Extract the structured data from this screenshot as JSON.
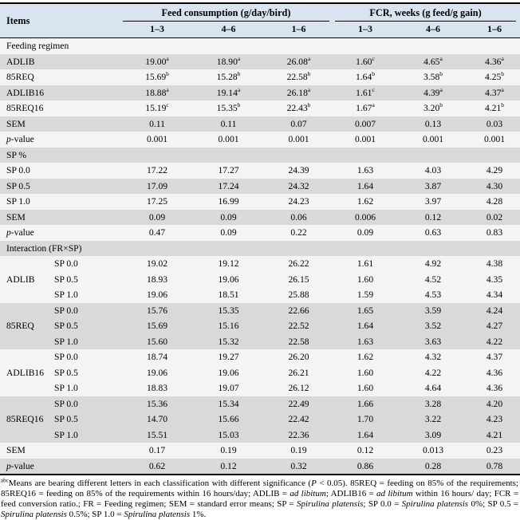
{
  "colors": {
    "header_bg": "#d9e4f1",
    "row_shaded": "#d9d9d9",
    "row_light": "#f4f4f4",
    "border": "#000000"
  },
  "table": {
    "items_header": "Items",
    "col_groups": [
      {
        "label": "Feed consumption (g/day/bird)",
        "cols": [
          "1–3",
          "4–6",
          "1–6"
        ]
      },
      {
        "label": "FCR, weeks (g feed/g gain)",
        "cols": [
          "1–3",
          "4–6",
          "1–6"
        ]
      }
    ],
    "rows": [
      {
        "type": "section",
        "label": "Feeding regimen",
        "shaded": false
      },
      {
        "type": "data",
        "label": "ADLIB",
        "shaded": true,
        "cells": [
          "19.00^a^",
          "18.90^a^",
          "26.08^a^",
          "1.60^c^",
          "4.65^a^",
          "4.36^a^"
        ]
      },
      {
        "type": "data",
        "label": "85REQ",
        "shaded": false,
        "cells": [
          "15.69^b^",
          "15.28^b^",
          "22.58^b^",
          "1.64^b^",
          "3.58^b^",
          "4.25^b^"
        ]
      },
      {
        "type": "data",
        "label": "ADLIB16",
        "shaded": true,
        "cells": [
          "18.88^a^",
          "19.14^a^",
          "26.18^a^",
          "1.61^c^",
          "4.39^a^",
          "4.37^a^"
        ]
      },
      {
        "type": "data",
        "label": "85REQ16",
        "shaded": false,
        "cells": [
          "15.19^c^",
          "15.35^b^",
          "22.43^b^",
          "1.67^a^",
          "3.20^b^",
          "4.21^b^"
        ]
      },
      {
        "type": "data",
        "label": "SEM",
        "shaded": true,
        "cells": [
          "0.11",
          "0.11",
          "0.07",
          "0.007",
          "0.13",
          "0.03"
        ]
      },
      {
        "type": "data",
        "label": "*p*-value",
        "shaded": false,
        "cells": [
          "0.001",
          "0.001",
          "0.001",
          "0.001",
          "0.001",
          "0.001"
        ]
      },
      {
        "type": "section",
        "label": "SP %",
        "shaded": true
      },
      {
        "type": "data",
        "label": "SP 0.0",
        "shaded": false,
        "cells": [
          "17.22",
          "17.27",
          "24.39",
          "1.63",
          "4.03",
          "4.29"
        ]
      },
      {
        "type": "data",
        "label": "SP 0.5",
        "shaded": true,
        "cells": [
          "17.09",
          "17.24",
          "24.32",
          "1.64",
          "3.87",
          "4.30"
        ]
      },
      {
        "type": "data",
        "label": "SP 1.0",
        "shaded": false,
        "cells": [
          "17.25",
          "16.99",
          "24.23",
          "1.62",
          "3.97",
          "4.28"
        ]
      },
      {
        "type": "data",
        "label": "SEM",
        "shaded": true,
        "cells": [
          "0.09",
          "0.09",
          "0.06",
          "0.006",
          "0.12",
          "0.02"
        ]
      },
      {
        "type": "data",
        "label": "*p*-value",
        "shaded": false,
        "cells": [
          "0.47",
          "0.09",
          "0.22",
          "0.09",
          "0.63",
          "0.83"
        ]
      },
      {
        "type": "section",
        "label": "Interaction (FR×SP)",
        "shaded": true
      },
      {
        "type": "data",
        "group": "",
        "label": "SP 0.0",
        "shaded": false,
        "cells": [
          "19.02",
          "19.12",
          "26.22",
          "1.61",
          "4.92",
          "4.38"
        ]
      },
      {
        "type": "data",
        "group": "ADLIB",
        "label": "SP 0.5",
        "shaded": false,
        "cells": [
          "18.93",
          "19.06",
          "26.15",
          "1.60",
          "4.52",
          "4.35"
        ]
      },
      {
        "type": "data",
        "group": "",
        "label": "SP 1.0",
        "shaded": false,
        "cells": [
          "19.06",
          "18.51",
          "25.88",
          "1.59",
          "4.53",
          "4.34"
        ]
      },
      {
        "type": "data",
        "group": "",
        "label": "SP 0.0",
        "shaded": true,
        "cells": [
          "15.76",
          "15.35",
          "22.66",
          "1.65",
          "3.59",
          "4.24"
        ]
      },
      {
        "type": "data",
        "group": "85REQ",
        "label": "SP 0.5",
        "shaded": true,
        "cells": [
          "15.69",
          "15.16",
          "22.52",
          "1.64",
          "3.52",
          "4.27"
        ]
      },
      {
        "type": "data",
        "group": "",
        "label": "SP 1.0",
        "shaded": true,
        "cells": [
          "15.60",
          "15.32",
          "22.58",
          "1.63",
          "3.63",
          "4.22"
        ]
      },
      {
        "type": "data",
        "group": "",
        "label": "SP 0.0",
        "shaded": false,
        "cells": [
          "18.74",
          "19.27",
          "26.20",
          "1.62",
          "4.32",
          "4.37"
        ]
      },
      {
        "type": "data",
        "group": "ADLIB16",
        "label": "SP 0.5",
        "shaded": false,
        "cells": [
          "19.06",
          "19.06",
          "26.21",
          "1.60",
          "4.22",
          "4.36"
        ]
      },
      {
        "type": "data",
        "group": "",
        "label": "SP 1.0",
        "shaded": false,
        "cells": [
          "18.83",
          "19.07",
          "26.12",
          "1.60",
          "4.64",
          "4.36"
        ]
      },
      {
        "type": "data",
        "group": "",
        "label": "SP 0.0",
        "shaded": true,
        "cells": [
          "15.36",
          "15.34",
          "22.49",
          "1.66",
          "3.28",
          "4.20"
        ]
      },
      {
        "type": "data",
        "group": "85REQ16",
        "label": "SP 0.5",
        "shaded": true,
        "cells": [
          "14.70",
          "15.66",
          "22.42",
          "1.70",
          "3.22",
          "4.23"
        ]
      },
      {
        "type": "data",
        "group": "",
        "label": "SP 1.0",
        "shaded": true,
        "cells": [
          "15.51",
          "15.03",
          "22.36",
          "1.64",
          "3.09",
          "4.21"
        ]
      },
      {
        "type": "data",
        "label": "SEM",
        "shaded": false,
        "cells": [
          "0.17",
          "0.19",
          "0.19",
          "0.12",
          "0.013",
          "0.23"
        ]
      },
      {
        "type": "data",
        "label": "*p*-value",
        "shaded": true,
        "cells": [
          "0.62",
          "0.12",
          "0.32",
          "0.86",
          "0.28",
          "0.78"
        ]
      }
    ]
  },
  "footnote": "^abc^Means are bearing different letters in each classification with different significance (*P* < 0.05). 85REQ = feeding on 85% of the requirements; 85REQ16 = feeding on 85% of the requirements within 16 hours/day; ADLIB = *ad libitum*; ADLIB16 = *ad libitum* within 16 hours/ day; FCR = feed conversion ratio.; FR = Feeding regimen; SEM = standard error means; SP = *Spirulina platensis*; SP 0.0 = *Spirulina platensis* 0%; SP 0.5 = *Spirulina platensis* 0.5%; SP 1.0 = *Spirulina platensis* 1%."
}
